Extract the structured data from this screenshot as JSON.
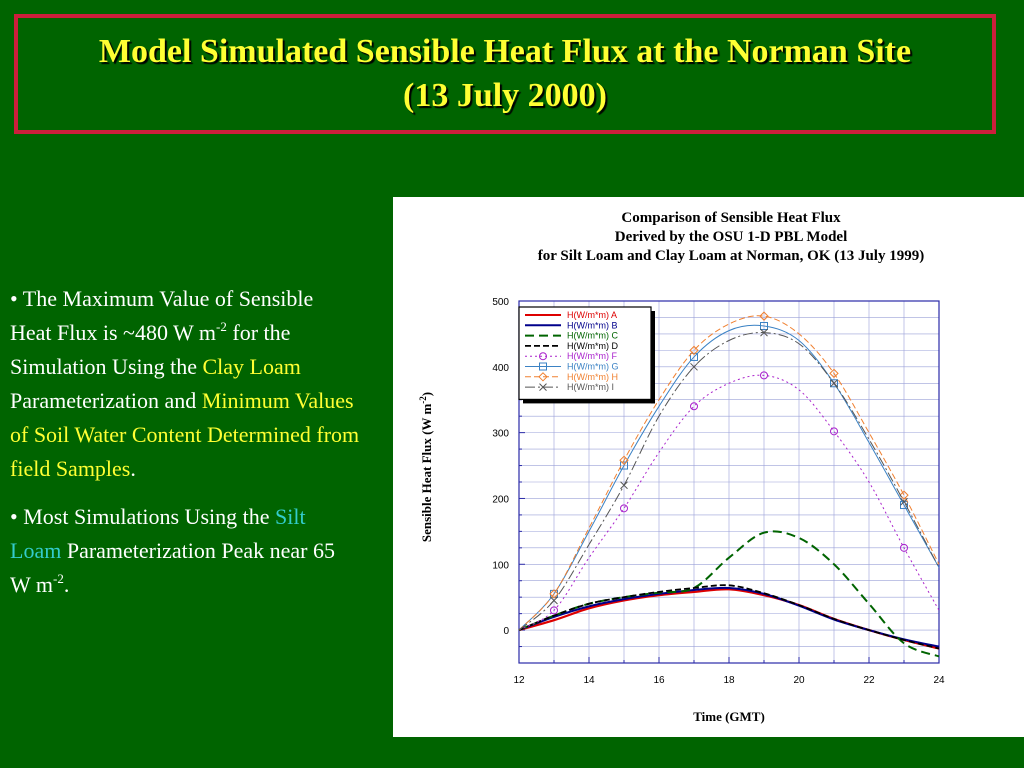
{
  "title": {
    "line1": "Model Simulated Sensible Heat Flux at the Norman Site",
    "line2": "(13 July 2000)"
  },
  "bullets": [
    {
      "parts": [
        {
          "text": "• The Maximum Value of Sensible Heat Flux is  ~480 W m",
          "style": "normal"
        },
        {
          "text": "-2",
          "style": "sup"
        },
        {
          "text": " for the Simulation Using the ",
          "style": "normal"
        },
        {
          "text": "Clay Loam",
          "style": "yellow"
        },
        {
          "text": " Parameterization and ",
          "style": "normal"
        },
        {
          "text": "Minimum Values of Soil Water Content Determined from field Samples",
          "style": "yellow"
        },
        {
          "text": ".",
          "style": "normal"
        }
      ]
    },
    {
      "parts": [
        {
          "text": "• Most Simulations Using the ",
          "style": "normal"
        },
        {
          "text": "Silt Loam",
          "style": "cyan"
        },
        {
          "text": " Parameterization Peak near 65 W m",
          "style": "normal"
        },
        {
          "text": "-2",
          "style": "sup"
        },
        {
          "text": ".",
          "style": "normal"
        }
      ]
    }
  ],
  "colors": {
    "background": "#006400",
    "title_text": "#ffff33",
    "title_border": "#cc1f3b",
    "body_text": "#ffffff",
    "highlight_yellow": "#ffff33",
    "highlight_cyan": "#33cccc"
  },
  "chart_data": {
    "type": "line",
    "title": [
      "Comparison of Sensible Heat Flux",
      "Derived by the OSU 1-D PBL Model",
      "for Silt Loam and Clay Loam at Norman, OK (13 July 1999)"
    ],
    "xlabel": "Time (GMT)",
    "ylabel": "Sensible Heat Flux (W m^-2)",
    "xlim": [
      12,
      24
    ],
    "ylim": [
      -50,
      500
    ],
    "xticks": [
      12,
      14,
      16,
      18,
      20,
      22,
      24
    ],
    "yticks": [
      0,
      100,
      200,
      300,
      400,
      500
    ],
    "grid": true,
    "legend_position": "top-left",
    "x": [
      12,
      13,
      14,
      15,
      16,
      17,
      18,
      19,
      20,
      21,
      22,
      23,
      24
    ],
    "series": [
      {
        "name": "H(W/m*m) A",
        "color": "#dd0000",
        "dash": "",
        "width": 2.2,
        "marker": "none",
        "values": [
          0,
          15,
          33,
          45,
          53,
          58,
          62,
          53,
          38,
          17,
          0,
          -15,
          -28
        ]
      },
      {
        "name": "H(W/m*m) B",
        "color": "#00008b",
        "dash": "",
        "width": 2,
        "marker": "none",
        "values": [
          0,
          20,
          36,
          47,
          55,
          61,
          64,
          55,
          37,
          16,
          0,
          -14,
          -25
        ]
      },
      {
        "name": "H(W/m*m) C",
        "color": "#006400",
        "dash": "9,5",
        "width": 2,
        "marker": "none",
        "values": [
          0,
          22,
          40,
          50,
          57,
          64,
          110,
          148,
          140,
          100,
          40,
          -20,
          -40
        ]
      },
      {
        "name": "H(W/m*m) D",
        "color": "#000000",
        "dash": "6,3",
        "width": 1.8,
        "marker": "none",
        "values": [
          0,
          22,
          40,
          50,
          58,
          64,
          68,
          56,
          38,
          17,
          0,
          -15,
          -28
        ]
      },
      {
        "name": "H(W/m*m) F",
        "color": "#aa22cc",
        "dash": "2,3",
        "width": 1,
        "marker": "circle",
        "values": [
          0,
          30,
          110,
          185,
          270,
          340,
          375,
          387,
          365,
          302,
          225,
          125,
          30
        ]
      },
      {
        "name": "H(W/m*m) G",
        "color": "#3b82c4",
        "dash": "",
        "width": 1,
        "marker": "square",
        "values": [
          0,
          55,
          150,
          250,
          340,
          415,
          455,
          462,
          440,
          375,
          285,
          190,
          95
        ]
      },
      {
        "name": "H(W/m*m) H",
        "color": "#f08030",
        "dash": "6,3",
        "width": 1,
        "marker": "diamond",
        "values": [
          0,
          55,
          155,
          258,
          350,
          425,
          465,
          477,
          450,
          390,
          300,
          205,
          100
        ]
      },
      {
        "name": "H(W/m*m) I",
        "color": "#555555",
        "dash": "10,3,2,3",
        "width": 1,
        "marker": "x",
        "values": [
          0,
          45,
          130,
          220,
          325,
          400,
          440,
          452,
          435,
          375,
          290,
          195,
          95
        ]
      }
    ]
  }
}
